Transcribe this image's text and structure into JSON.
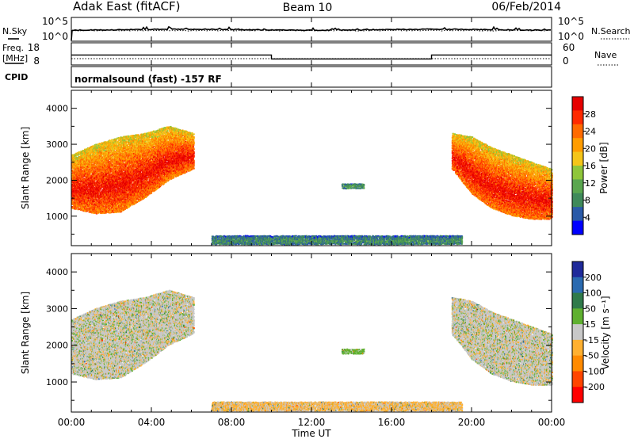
{
  "header": {
    "station": "Adak East (fitACF)",
    "beam": "Beam 10",
    "date": "06/Feb/2014"
  },
  "top_panel": {
    "left_label_1": "N.Sky",
    "left_label_2": "Freq.",
    "left_label_3": "[MHz]",
    "left_label_4": "CPID",
    "right_label_1": "N.Search",
    "right_label_2": "Nave",
    "noise_ticks_left": [
      "10^5",
      "10^0"
    ],
    "noise_ticks_right": [
      "10^5",
      "10^0"
    ],
    "freq_ticks": [
      "18",
      "8"
    ],
    "nave_ticks": [
      "60",
      "0"
    ],
    "cpid_text": "normalsound (fast) -157 RF",
    "freq_trace": {
      "t": [
        0,
        10,
        10,
        18,
        18,
        24
      ],
      "mhz": [
        12.5,
        12.5,
        10.7,
        10.7,
        12.5,
        12.5
      ]
    }
  },
  "colors": {
    "power_scale": [
      "#0000ff",
      "#2a5aa8",
      "#3f8a5a",
      "#5aa64f",
      "#8fc63a",
      "#f5c518",
      "#ff9c00",
      "#ff6a00",
      "#ff2a00",
      "#e60000"
    ],
    "velocity_scale": [
      "#1f2a9a",
      "#2a6ab0",
      "#2f7a4a",
      "#5fb030",
      "#c8c8c8",
      "#ffb030",
      "#ff8a00",
      "#ff4500",
      "#ff0000"
    ]
  },
  "chart_data": [
    {
      "type": "heatmap",
      "title": "",
      "xlabel": "",
      "ylabel": "Slant Range [km]",
      "xlim": [
        0,
        24
      ],
      "ylim": [
        180,
        4500
      ],
      "x_tick_labels": [],
      "y_tick_labels": [
        "1000",
        "2000",
        "3000",
        "4000"
      ],
      "colorbar": {
        "label": "Power [dB]",
        "range": [
          0,
          32
        ],
        "tick_labels": [
          "4",
          "8",
          "12",
          "16",
          "20",
          "24",
          "28"
        ]
      },
      "echo_regions": [
        {
          "t_start": 0.0,
          "t_end": 6.1,
          "range_lower_km": [
            1200,
            1050,
            1100,
            1500,
            2000,
            2300
          ],
          "range_upper_km": [
            2700,
            3000,
            3200,
            3300,
            3500,
            3300
          ],
          "power_db": 26
        },
        {
          "t_start": 13.5,
          "t_end": 14.6,
          "range_lower_km": [
            1750,
            1750
          ],
          "range_upper_km": [
            1900,
            1900
          ],
          "power_db": 9
        },
        {
          "t_start": 19.0,
          "t_end": 24.0,
          "range_lower_km": [
            2300,
            1600,
            1200,
            1000,
            900,
            900
          ],
          "range_upper_km": [
            3300,
            3200,
            2900,
            2700,
            2500,
            2300
          ],
          "power_db": 26
        },
        {
          "t_start": 7.0,
          "t_end": 19.5,
          "range_lower_km": [
            200
          ],
          "range_upper_km": [
            450
          ],
          "power_db": 8
        }
      ]
    },
    {
      "type": "heatmap",
      "title": "",
      "xlabel": "Time UT",
      "ylabel": "Slant Range [km]",
      "xlim": [
        0,
        24
      ],
      "ylim": [
        180,
        4500
      ],
      "x_tick_labels": [
        "00:00",
        "04:00",
        "08:00",
        "12:00",
        "16:00",
        "20:00",
        "00:00"
      ],
      "y_tick_labels": [
        "1000",
        "2000",
        "3000",
        "4000"
      ],
      "colorbar": {
        "label": "Velocity [m s⁻¹]",
        "tick_labels": [
          "200",
          "100",
          "50",
          "15",
          "-15",
          "-50",
          "-100",
          "-200"
        ]
      },
      "echo_regions": [
        {
          "t_start": 0.0,
          "t_end": 6.1,
          "range_lower_km": [
            1200,
            1050,
            1100,
            1500,
            2000,
            2300
          ],
          "range_upper_km": [
            2700,
            3000,
            3200,
            3300,
            3500,
            3300
          ],
          "velocity_ms": 0
        },
        {
          "t_start": 13.5,
          "t_end": 14.6,
          "range_lower_km": [
            1750,
            1750
          ],
          "range_upper_km": [
            1900,
            1900
          ],
          "velocity_ms": 30
        },
        {
          "t_start": 19.0,
          "t_end": 24.0,
          "range_lower_km": [
            2300,
            1600,
            1200,
            1000,
            900,
            900
          ],
          "range_upper_km": [
            3300,
            3200,
            2900,
            2700,
            2500,
            2300
          ],
          "velocity_ms": 0
        },
        {
          "t_start": 7.0,
          "t_end": 19.5,
          "range_lower_km": [
            200
          ],
          "range_upper_km": [
            450
          ],
          "velocity_ms": -20
        }
      ]
    }
  ]
}
